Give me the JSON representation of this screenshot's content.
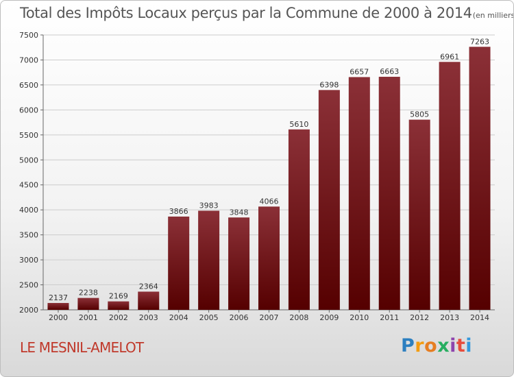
{
  "chart_data": {
    "type": "bar",
    "title": "Total des Impôts Locaux perçus par la Commune de 2000 à 2014",
    "subtitle": "(en milliers d'€)",
    "categories": [
      "2000",
      "2001",
      "2002",
      "2003",
      "2004",
      "2005",
      "2006",
      "2007",
      "2008",
      "2009",
      "2010",
      "2011",
      "2012",
      "2013",
      "2014"
    ],
    "values": [
      2137,
      2238,
      2169,
      2364,
      3866,
      3983,
      3848,
      4066,
      5610,
      6398,
      6657,
      6663,
      5805,
      6961,
      7263
    ],
    "ylim": [
      2000,
      7500
    ],
    "yticks": [
      2000,
      2500,
      3000,
      3500,
      4000,
      4500,
      5000,
      5500,
      6000,
      6500,
      7000,
      7500
    ],
    "xlabel": "",
    "ylabel": "",
    "grid": true,
    "bar_color_top": "#8b3037",
    "bar_color_bottom": "#550000"
  },
  "commune": "LE MESNIL-AMELOT",
  "logo": {
    "letters": [
      "P",
      "r",
      "o",
      "x",
      "i",
      "t",
      "i"
    ],
    "colors": [
      "#2c7fc0",
      "#f39c12",
      "#e67e22",
      "#27ae60",
      "#8e44ad",
      "#e74c3c",
      "#3498db"
    ]
  }
}
